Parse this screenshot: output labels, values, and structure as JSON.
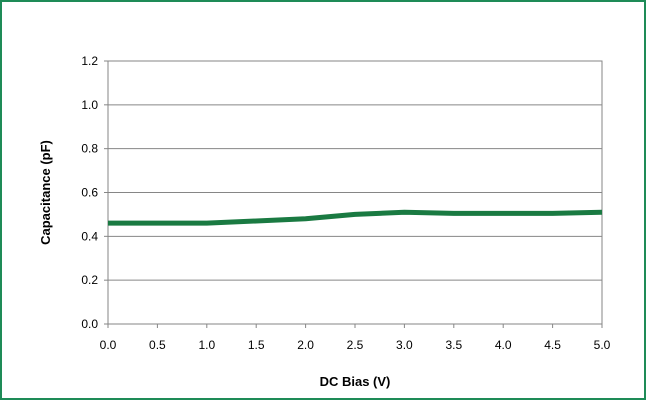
{
  "chart_data": {
    "type": "line",
    "title": "",
    "xlabel": "DC Bias (V)",
    "ylabel": "Capacitance (pF)",
    "xlim": [
      0,
      5
    ],
    "ylim": [
      0,
      1.2
    ],
    "x_ticks": [
      "0.0",
      "0.5",
      "1.0",
      "1.5",
      "2.0",
      "2.5",
      "3.0",
      "3.5",
      "4.0",
      "4.5",
      "5.0"
    ],
    "y_ticks": [
      "0.0",
      "0.2",
      "0.4",
      "0.6",
      "0.8",
      "1.0",
      "1.2"
    ],
    "grid": "horizontal",
    "legend": "none",
    "series": [
      {
        "color": "#1a7a42",
        "x": [
          0.0,
          0.5,
          1.0,
          1.5,
          2.0,
          2.5,
          3.0,
          3.5,
          4.0,
          4.5,
          5.0
        ],
        "y": [
          0.46,
          0.46,
          0.46,
          0.47,
          0.48,
          0.5,
          0.51,
          0.505,
          0.505,
          0.505,
          0.51
        ]
      }
    ]
  },
  "colors": {
    "frame_border": "#1e8b57",
    "plot_border": "#868686",
    "grid": "#868686"
  }
}
